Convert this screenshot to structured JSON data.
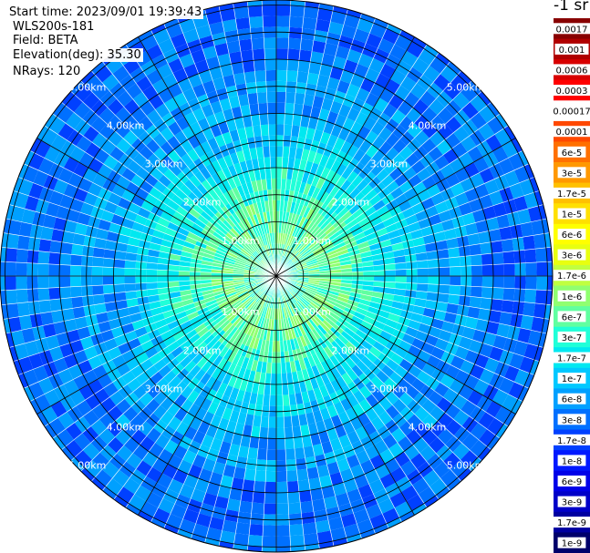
{
  "info": {
    "start": "Start time: 2023/09/01 19:39:43",
    "instrument": "WLS200s-181",
    "field": "Field: BETA",
    "elevation": "Elevation(deg): 35.30",
    "nrays": "NRays: 120"
  },
  "colorbar": {
    "unit": "-1 sr",
    "levels": [
      {
        "label": "1e-9",
        "color": "#00006b"
      },
      {
        "label": "1.7e-9",
        "color": "#0000a0"
      },
      {
        "label": "3e-9",
        "color": "#0000c8"
      },
      {
        "label": "6e-9",
        "color": "#0000e8"
      },
      {
        "label": "1e-8",
        "color": "#0018ff"
      },
      {
        "label": "1.7e-8",
        "color": "#0040ff"
      },
      {
        "label": "3e-8",
        "color": "#0070ff"
      },
      {
        "label": "6e-8",
        "color": "#00a0ff"
      },
      {
        "label": "1e-7",
        "color": "#00c8ff"
      },
      {
        "label": "1.7e-7",
        "color": "#00e8f0"
      },
      {
        "label": "3e-7",
        "color": "#20ffd8"
      },
      {
        "label": "6e-7",
        "color": "#60ffa0"
      },
      {
        "label": "1e-6",
        "color": "#90ff70"
      },
      {
        "label": "1.7e-6",
        "color": "#c0ff40"
      },
      {
        "label": "3e-6",
        "color": "#e8ff10"
      },
      {
        "label": "6e-6",
        "color": "#ffff00"
      },
      {
        "label": "1e-5",
        "color": "#ffe000"
      },
      {
        "label": "1.7e-5",
        "color": "#ffc000"
      },
      {
        "label": "3e-5",
        "color": "#ff9800"
      },
      {
        "label": "6e-5",
        "color": "#ff7000"
      },
      {
        "label": "0.0001",
        "color": "#ff4800"
      },
      {
        "label": "0.00017",
        "color": "#ffffff"
      },
      {
        "label": "0.0003",
        "color": "#ff0000"
      },
      {
        "label": "0.0006",
        "color": "#d80000"
      },
      {
        "label": "0.001",
        "color": "#b00000"
      },
      {
        "label": "0.0017",
        "color": "#880000"
      }
    ]
  },
  "chart_data": {
    "type": "heatmap",
    "projection": "polar",
    "field": "BETA",
    "rays": 120,
    "range_rings": [
      "1.00km",
      "2.00km",
      "3.00km",
      "4.00km",
      "5.00km"
    ],
    "max_range_km": 5.2,
    "radial_profile": [
      {
        "range_km": 0.0,
        "level_index": 10
      },
      {
        "range_km": 0.5,
        "level_index": 11
      },
      {
        "range_km": 1.0,
        "level_index": 11
      },
      {
        "range_km": 1.5,
        "level_index": 10
      },
      {
        "range_km": 2.0,
        "level_index": 9
      },
      {
        "range_km": 2.5,
        "level_index": 8
      },
      {
        "range_km": 3.0,
        "level_index": 7
      },
      {
        "range_km": 3.5,
        "level_index": 7
      },
      {
        "range_km": 4.0,
        "level_index": 6
      },
      {
        "range_km": 4.5,
        "level_index": 6
      },
      {
        "range_km": 5.0,
        "level_index": 6
      }
    ],
    "grid": true
  }
}
